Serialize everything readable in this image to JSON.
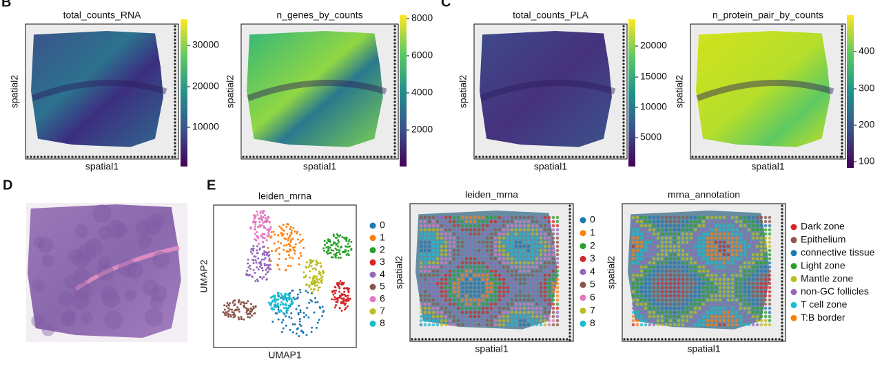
{
  "panel_labels": [
    "B",
    "C",
    "D",
    "E"
  ],
  "heatmaps": [
    {
      "title": "total_counts_RNA",
      "xlabel": "spatial1",
      "ylabel": "spatial2",
      "colorbar_ticks": [
        30000,
        20000,
        10000
      ]
    },
    {
      "title": "n_genes_by_counts",
      "xlabel": "spatial1",
      "ylabel": "spatial2",
      "colorbar_ticks": [
        8000,
        6000,
        4000,
        2000
      ]
    },
    {
      "title": "total_counts_PLA",
      "xlabel": "spatial1",
      "ylabel": "spatial2",
      "colorbar_ticks": [
        20000,
        15000,
        10000,
        5000
      ]
    },
    {
      "title": "n_protein_pair_by_counts",
      "xlabel": "spatial1",
      "ylabel": "spatial2",
      "colorbar_ticks": [
        400,
        300,
        200,
        100
      ]
    }
  ],
  "umap": {
    "title": "leiden_mrna",
    "xlabel": "UMAP1",
    "ylabel": "UMAP2"
  },
  "spatial_clusters": {
    "title": "leiden_mrna",
    "xlabel": "spatial1",
    "ylabel": "spatial2"
  },
  "cluster_legend": {
    "labels": [
      "0",
      "1",
      "2",
      "3",
      "4",
      "5",
      "6",
      "7",
      "8"
    ],
    "colors": [
      "#1f77b4",
      "#ff7f0e",
      "#2ca02c",
      "#d62728",
      "#9467bd",
      "#8c564b",
      "#e377c2",
      "#bcbd22",
      "#17becf"
    ]
  },
  "annotation": {
    "title": "mrna_annotation",
    "xlabel": "spatial1",
    "ylabel": "spatial2",
    "legend": [
      {
        "name": "Dark zone",
        "color": "#d62728"
      },
      {
        "name": "Epithelium",
        "color": "#8c564b"
      },
      {
        "name": "connective tissue",
        "color": "#1f77b4"
      },
      {
        "name": "Light zone",
        "color": "#2ca02c"
      },
      {
        "name": "Mantle zone",
        "color": "#bcbd22"
      },
      {
        "name": "non-GC follicles",
        "color": "#9467bd"
      },
      {
        "name": "T cell zone",
        "color": "#17becf"
      },
      {
        "name": "T:B border",
        "color": "#ff7f0e"
      }
    ]
  }
}
